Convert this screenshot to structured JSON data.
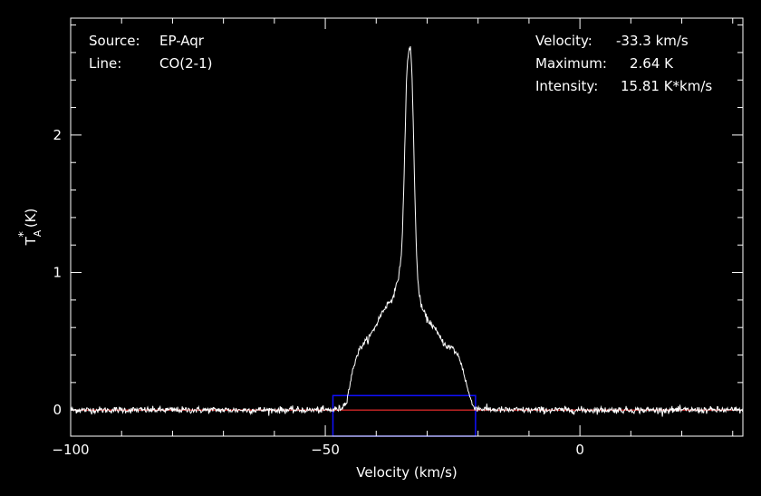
{
  "info": {
    "source_label": "Source:",
    "source_value": "EP-Aqr",
    "line_label": "Line:",
    "line_value": "CO(2-1)",
    "velocity_label": "Velocity:",
    "velocity_value": "-33.3 km/s",
    "maximum_label": "Maximum:",
    "maximum_value": "2.64 K",
    "intensity_label": "Intensity:",
    "intensity_value": "15.81 K*km/s"
  },
  "colors": {
    "background": "#000000",
    "axes": "#ffffff",
    "spectrum": "#ffffff",
    "baseline": "#ff3030",
    "window_box": "#1010ff"
  },
  "chart_data": {
    "type": "line",
    "title": "",
    "xlabel": "Velocity (km/s)",
    "ylabel_main": "T",
    "ylabel_sup": "*",
    "ylabel_sub": "A",
    "ylabel_unit": "(K)",
    "xlim": [
      -100,
      32
    ],
    "ylim": [
      -0.19,
      2.85
    ],
    "x_ticks": [
      -100,
      -50,
      0
    ],
    "x_tick_labels": [
      "−100",
      "−50",
      "0"
    ],
    "y_ticks": [
      0,
      1,
      2
    ],
    "y_tick_labels": [
      "0",
      "1",
      "2"
    ],
    "grid": false,
    "legend": "none",
    "baseline_value": 0,
    "window": {
      "x_range": [
        -48.5,
        -20.5
      ],
      "y_range": [
        -0.19,
        0.105
      ]
    },
    "noise_rms": 0.012,
    "series": [
      {
        "x": [
          -100,
          -49,
          -47,
          -46,
          -45.5,
          -45,
          -44.5,
          -44,
          -43,
          -42,
          -41,
          -40,
          -39,
          -38,
          -37,
          -36.5,
          -36,
          -35.5,
          -35,
          -34.8,
          -34.6,
          -34.4,
          -34.2,
          -34,
          -33.8,
          -33.6,
          -33.4,
          -33.3,
          -33.1,
          -32.9,
          -32.7,
          -32.5,
          -32.3,
          -32.1,
          -31.9,
          -31.7,
          -31.5,
          -31,
          -30.5,
          -30,
          -29,
          -28,
          -27,
          -26,
          -25,
          -24,
          -23.5,
          -23,
          -22.5,
          -22,
          -21.5,
          -21,
          -20,
          -15,
          32
        ],
        "y": [
          0,
          0,
          0.01,
          0.05,
          0.12,
          0.22,
          0.3,
          0.38,
          0.46,
          0.5,
          0.55,
          0.62,
          0.7,
          0.76,
          0.8,
          0.85,
          0.9,
          1.0,
          1.15,
          1.35,
          1.6,
          1.9,
          2.2,
          2.45,
          2.55,
          2.6,
          2.64,
          2.64,
          2.55,
          2.35,
          2.05,
          1.7,
          1.4,
          1.15,
          1.0,
          0.9,
          0.82,
          0.74,
          0.7,
          0.66,
          0.62,
          0.56,
          0.5,
          0.46,
          0.45,
          0.4,
          0.36,
          0.3,
          0.22,
          0.15,
          0.08,
          0.03,
          0.01,
          0,
          0
        ]
      }
    ]
  }
}
